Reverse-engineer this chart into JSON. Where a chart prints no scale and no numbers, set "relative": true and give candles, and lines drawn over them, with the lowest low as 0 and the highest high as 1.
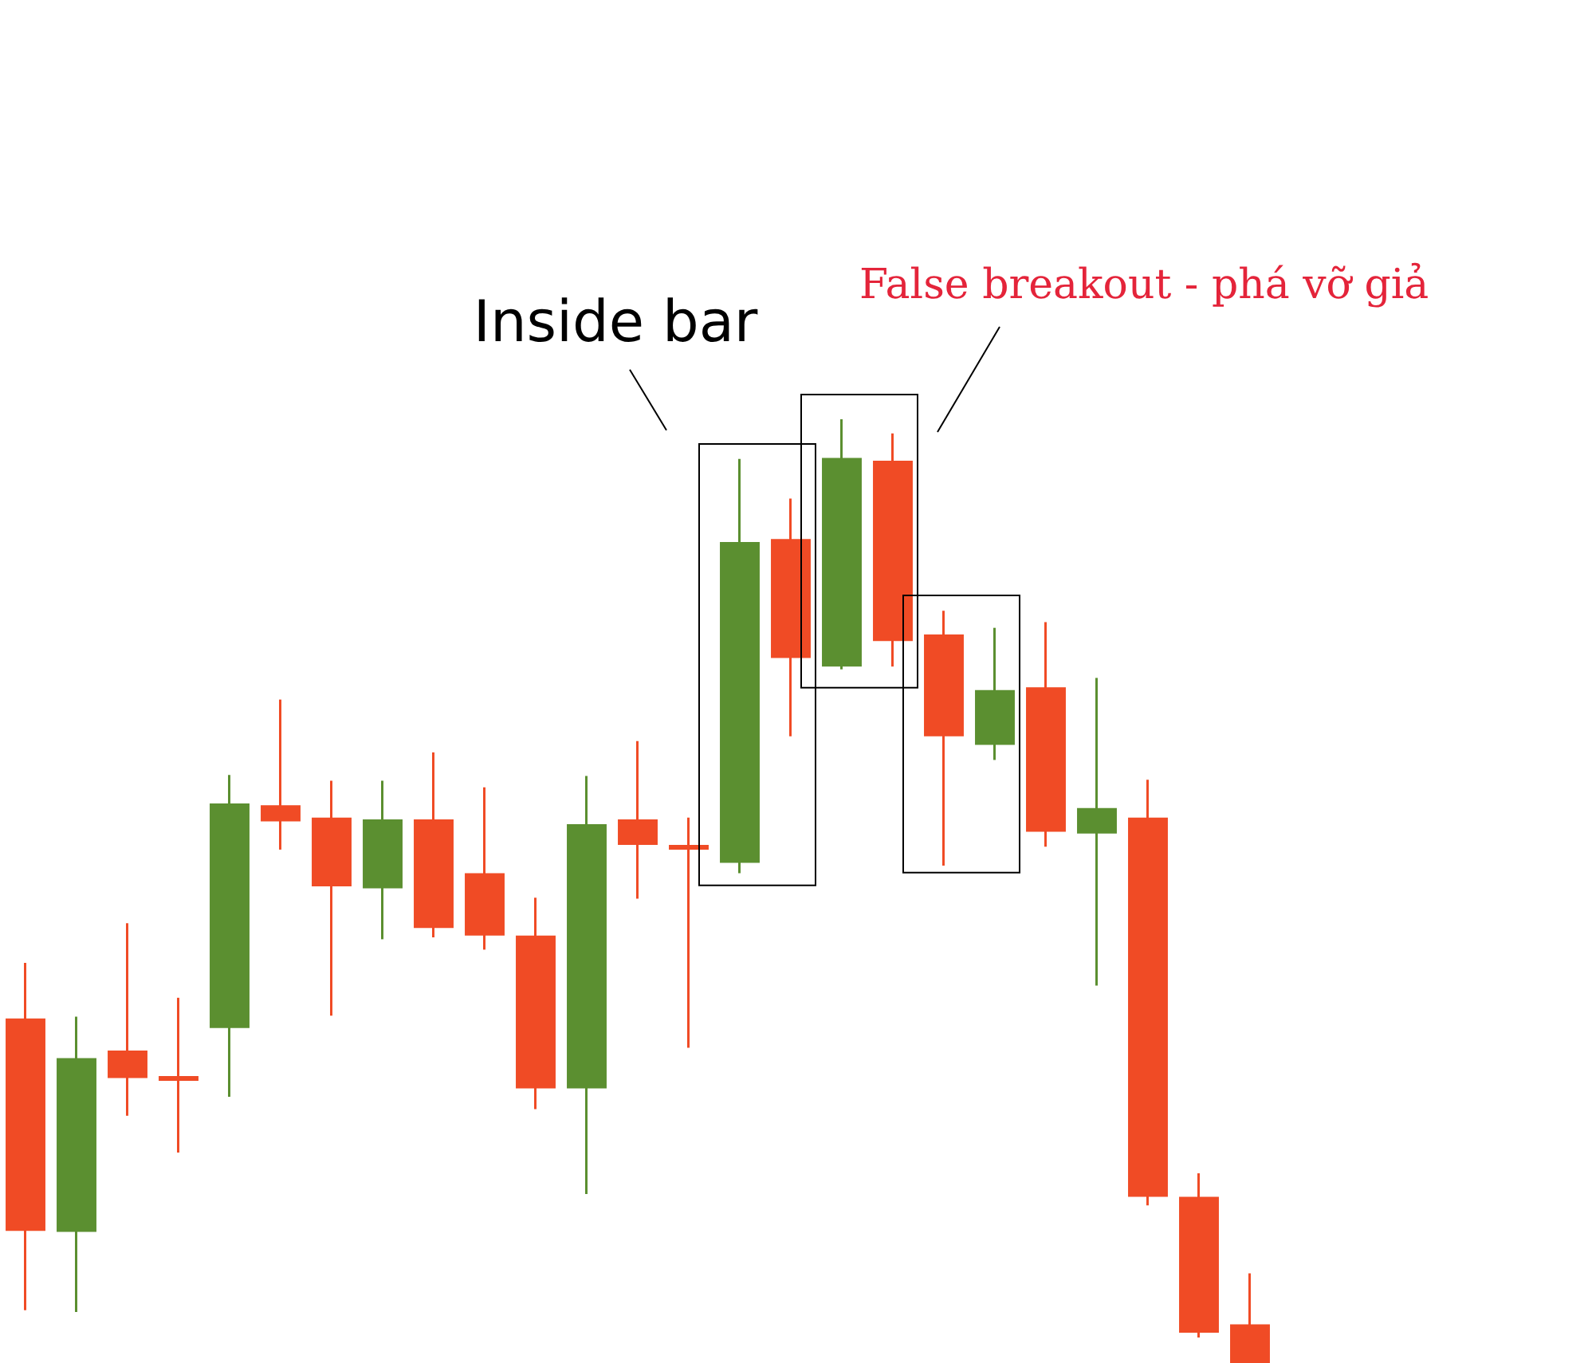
{
  "chart_data": {
    "type": "candlestick",
    "relative": true,
    "legend": false,
    "categories": [
      null,
      null,
      null,
      null,
      null,
      null,
      null,
      null,
      null,
      null,
      null,
      null,
      null,
      null,
      null,
      null,
      null,
      null,
      null,
      null,
      null,
      null,
      null,
      null,
      null
    ],
    "ohlc": [
      [
        0.365,
        0.424,
        0.056,
        0.14
      ],
      [
        0.139,
        0.367,
        0.054,
        0.323
      ],
      [
        0.331,
        0.466,
        0.262,
        0.302
      ],
      [
        0.304,
        0.387,
        0.223,
        0.299
      ],
      [
        0.355,
        0.623,
        0.282,
        0.593
      ],
      [
        0.591,
        0.703,
        0.544,
        0.574
      ],
      [
        0.578,
        0.617,
        0.368,
        0.505
      ],
      [
        0.503,
        0.617,
        0.449,
        0.576
      ],
      [
        0.576,
        0.647,
        0.451,
        0.461
      ],
      [
        0.519,
        0.61,
        0.438,
        0.453
      ],
      [
        0.453,
        0.493,
        0.269,
        0.291
      ],
      [
        0.291,
        0.622,
        0.179,
        0.571
      ],
      [
        0.576,
        0.659,
        0.492,
        0.549
      ],
      [
        0.547,
        0.578,
        0.334,
        0.544
      ],
      [
        0.53,
        0.958,
        0.519,
        0.87
      ],
      [
        0.873,
        0.916,
        0.664,
        0.747
      ],
      [
        0.738,
        1,
        0.735,
        0.959
      ],
      [
        0.956,
        0.985,
        0.738,
        0.765
      ],
      [
        0.772,
        0.797,
        0.527,
        0.664
      ],
      [
        0.655,
        0.779,
        0.639,
        0.713
      ],
      [
        0.716,
        0.785,
        0.547,
        0.563
      ],
      [
        0.561,
        0.726,
        0.4,
        0.588
      ],
      [
        0.578,
        0.618,
        0.167,
        0.176
      ],
      [
        0.176,
        0.201,
        0.027,
        0.032
      ],
      [
        0.041,
        0.095,
        0,
        0
      ]
    ],
    "colors": [
      "#f04b25",
      "#5b8f30",
      "#f04b25",
      "#f04b25",
      "#5b8f30",
      "#f04b25",
      "#f04b25",
      "#5b8f30",
      "#f04b25",
      "#f04b25",
      "#f04b25",
      "#5b8f30",
      "#f04b25",
      "#f04b25",
      "#5b8f30",
      "#f04b25",
      "#5b8f30",
      "#f04b25",
      "#f04b25",
      "#5b8f30",
      "#f04b25",
      "#5b8f30",
      "#f04b25",
      "#f04b25",
      "#f04b25"
    ],
    "annotations": [
      "Inside bar",
      "False breakout - phá vỡ giả"
    ]
  }
}
